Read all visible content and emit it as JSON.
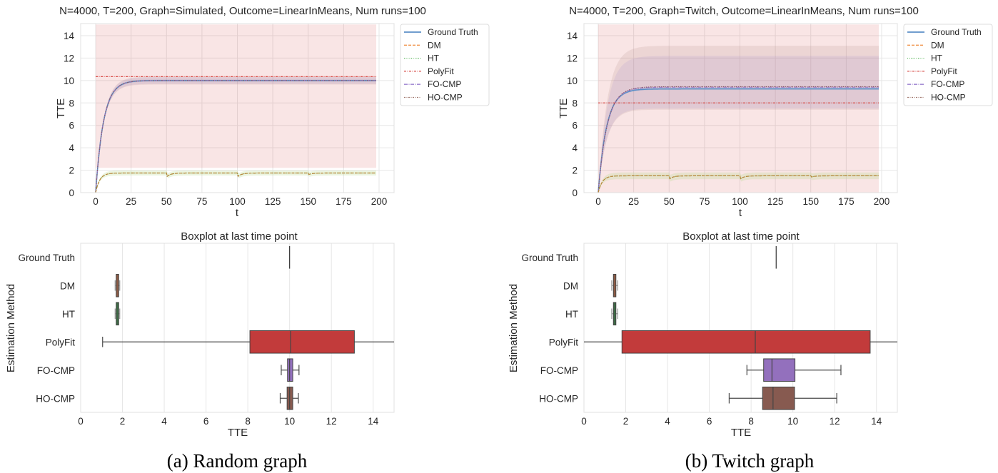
{
  "figure": {
    "captions": [
      "(a) Random graph",
      "(b) Twitch graph"
    ]
  },
  "series_styles": [
    {
      "name": "Ground Truth",
      "color": "#5b8fc7",
      "dash": ""
    },
    {
      "name": "DM",
      "color": "#f0954d",
      "dash": "4,2"
    },
    {
      "name": "HT",
      "color": "#5fb85f",
      "dash": "1,1.5"
    },
    {
      "name": "PolyFit",
      "color": "#d9534f",
      "dash": "3,1.5,1,1.5"
    },
    {
      "name": "FO-CMP",
      "color": "#9a7fcf",
      "dash": "5,1.5,1,1.5"
    },
    {
      "name": "HO-CMP",
      "color": "#a1786e",
      "dash": "2,1.5,1,1.5"
    }
  ],
  "box_colors": {
    "Ground Truth": "#4c72b0",
    "DM": "#8c5a44",
    "HT": "#3d6b45",
    "PolyFit": "#c23b3b",
    "FO-CMP": "#9370bd",
    "HO-CMP": "#875a50"
  },
  "chart_data": [
    {
      "type": "line",
      "panel": "a-top",
      "title": "N=4000, T=200, Graph=Simulated, Outcome=LinearInMeans, Num runs=100",
      "xlabel": "t",
      "ylabel": "TTE",
      "xlim": [
        0,
        200
      ],
      "ylim": [
        0,
        15
      ],
      "xticks": [
        0,
        25,
        50,
        75,
        100,
        125,
        150,
        175,
        200
      ],
      "yticks": [
        0,
        2,
        4,
        6,
        8,
        10,
        12,
        14
      ],
      "grid": true,
      "legend": "outside-top-right",
      "legend_entries": [
        "Ground Truth",
        "DM",
        "HT",
        "PolyFit",
        "FO-CMP",
        "HO-CMP"
      ],
      "series": [
        {
          "name": "Ground Truth",
          "shape": "saturating",
          "plateau": 10.0,
          "rate": 0.18,
          "band": [
            9.9,
            10.1
          ]
        },
        {
          "name": "DM",
          "shape": "saturating-dips",
          "plateau": 1.75,
          "rate": 0.35,
          "dips_at": [
            50,
            100,
            150
          ],
          "dip_depth": [
            0.35,
            0.35,
            0.15
          ],
          "band": [
            1.55,
            2.0
          ]
        },
        {
          "name": "HT",
          "shape": "saturating-dips",
          "plateau": 1.75,
          "rate": 0.35,
          "dips_at": [
            50,
            100,
            150
          ],
          "dip_depth": [
            0.35,
            0.35,
            0.15
          ],
          "band": [
            1.55,
            2.0
          ]
        },
        {
          "name": "PolyFit",
          "shape": "constant",
          "value": 10.35,
          "band": [
            2.2,
            15.0
          ]
        },
        {
          "name": "FO-CMP",
          "shape": "saturating",
          "plateau": 10.0,
          "rate": 0.18,
          "band": [
            9.7,
            10.3
          ]
        },
        {
          "name": "HO-CMP",
          "shape": "saturating",
          "plateau": 10.0,
          "rate": 0.18,
          "band": [
            9.65,
            10.35
          ]
        }
      ]
    },
    {
      "type": "line",
      "panel": "b-top",
      "title": "N=4000, T=200, Graph=Twitch, Outcome=LinearInMeans, Num runs=100",
      "xlabel": "t",
      "ylabel": "TTE",
      "xlim": [
        0,
        200
      ],
      "ylim": [
        0,
        15
      ],
      "xticks": [
        0,
        25,
        50,
        75,
        100,
        125,
        150,
        175,
        200
      ],
      "yticks": [
        0,
        2,
        4,
        6,
        8,
        10,
        12,
        14
      ],
      "grid": true,
      "legend": "outside-top-right",
      "legend_entries": [
        "Ground Truth",
        "DM",
        "HT",
        "PolyFit",
        "FO-CMP",
        "HO-CMP"
      ],
      "series": [
        {
          "name": "Ground Truth",
          "shape": "saturating",
          "plateau": 9.25,
          "rate": 0.17,
          "band": [
            9.15,
            9.35
          ]
        },
        {
          "name": "DM",
          "shape": "saturating-dips",
          "plateau": 1.5,
          "rate": 0.35,
          "dips_at": [
            50,
            100,
            150
          ],
          "dip_depth": [
            0.3,
            0.3,
            0.12
          ],
          "band": [
            1.2,
            1.8
          ]
        },
        {
          "name": "HT",
          "shape": "saturating-dips",
          "plateau": 1.5,
          "rate": 0.35,
          "dips_at": [
            50,
            100,
            150
          ],
          "dip_depth": [
            0.3,
            0.3,
            0.12
          ],
          "band": [
            1.2,
            1.8
          ]
        },
        {
          "name": "PolyFit",
          "shape": "constant",
          "value": 8.0,
          "band": [
            0.0,
            15.0
          ]
        },
        {
          "name": "FO-CMP",
          "shape": "saturating",
          "plateau": 9.4,
          "rate": 0.16,
          "band": [
            7.5,
            12.2
          ]
        },
        {
          "name": "HO-CMP",
          "shape": "saturating",
          "plateau": 9.45,
          "rate": 0.16,
          "band": [
            7.4,
            13.1
          ]
        }
      ]
    },
    {
      "type": "boxplot",
      "panel": "a-bottom",
      "title": "Boxplot at last time point",
      "xlabel": "TTE",
      "ylabel": "Estimation Method",
      "xlim": [
        0,
        15
      ],
      "xticks": [
        0,
        2,
        4,
        6,
        8,
        10,
        12,
        14
      ],
      "grid": true,
      "categories": [
        "Ground Truth",
        "DM",
        "HT",
        "PolyFit",
        "FO-CMP",
        "HO-CMP"
      ],
      "boxes": [
        {
          "name": "Ground Truth",
          "whislo": 10.0,
          "q1": 10.0,
          "med": 10.0,
          "q3": 10.0,
          "whishi": 10.0
        },
        {
          "name": "DM",
          "whislo": 1.65,
          "q1": 1.72,
          "med": 1.76,
          "q3": 1.8,
          "whishi": 1.87
        },
        {
          "name": "HT",
          "whislo": 1.65,
          "q1": 1.72,
          "med": 1.76,
          "q3": 1.8,
          "whishi": 1.87
        },
        {
          "name": "PolyFit",
          "whislo": 1.05,
          "q1": 8.1,
          "med": 10.05,
          "q3": 13.1,
          "whishi": 15.0
        },
        {
          "name": "FO-CMP",
          "whislo": 9.6,
          "q1": 9.9,
          "med": 10.0,
          "q3": 10.15,
          "whishi": 10.45
        },
        {
          "name": "HO-CMP",
          "whislo": 9.55,
          "q1": 9.88,
          "med": 10.0,
          "q3": 10.15,
          "whishi": 10.42
        }
      ]
    },
    {
      "type": "boxplot",
      "panel": "b-bottom",
      "title": "Boxplot at last time point",
      "xlabel": "TTE",
      "ylabel": "Estimation Method",
      "xlim": [
        0,
        15
      ],
      "xticks": [
        0,
        2,
        4,
        6,
        8,
        10,
        12,
        14
      ],
      "grid": true,
      "categories": [
        "Ground Truth",
        "DM",
        "HT",
        "PolyFit",
        "FO-CMP",
        "HO-CMP"
      ],
      "boxes": [
        {
          "name": "Ground Truth",
          "whislo": 9.2,
          "q1": 9.2,
          "med": 9.2,
          "q3": 9.2,
          "whishi": 9.2
        },
        {
          "name": "DM",
          "whislo": 1.33,
          "q1": 1.42,
          "med": 1.47,
          "q3": 1.52,
          "whishi": 1.62
        },
        {
          "name": "HT",
          "whislo": 1.33,
          "q1": 1.42,
          "med": 1.47,
          "q3": 1.52,
          "whishi": 1.62
        },
        {
          "name": "PolyFit",
          "whislo": 0.0,
          "q1": 1.82,
          "med": 8.2,
          "q3": 13.7,
          "whishi": 15.0
        },
        {
          "name": "FO-CMP",
          "whislo": 7.8,
          "q1": 8.6,
          "med": 9.0,
          "q3": 10.1,
          "whishi": 12.3
        },
        {
          "name": "HO-CMP",
          "whislo": 6.95,
          "q1": 8.55,
          "med": 9.05,
          "q3": 10.08,
          "whishi": 12.1
        }
      ]
    }
  ]
}
